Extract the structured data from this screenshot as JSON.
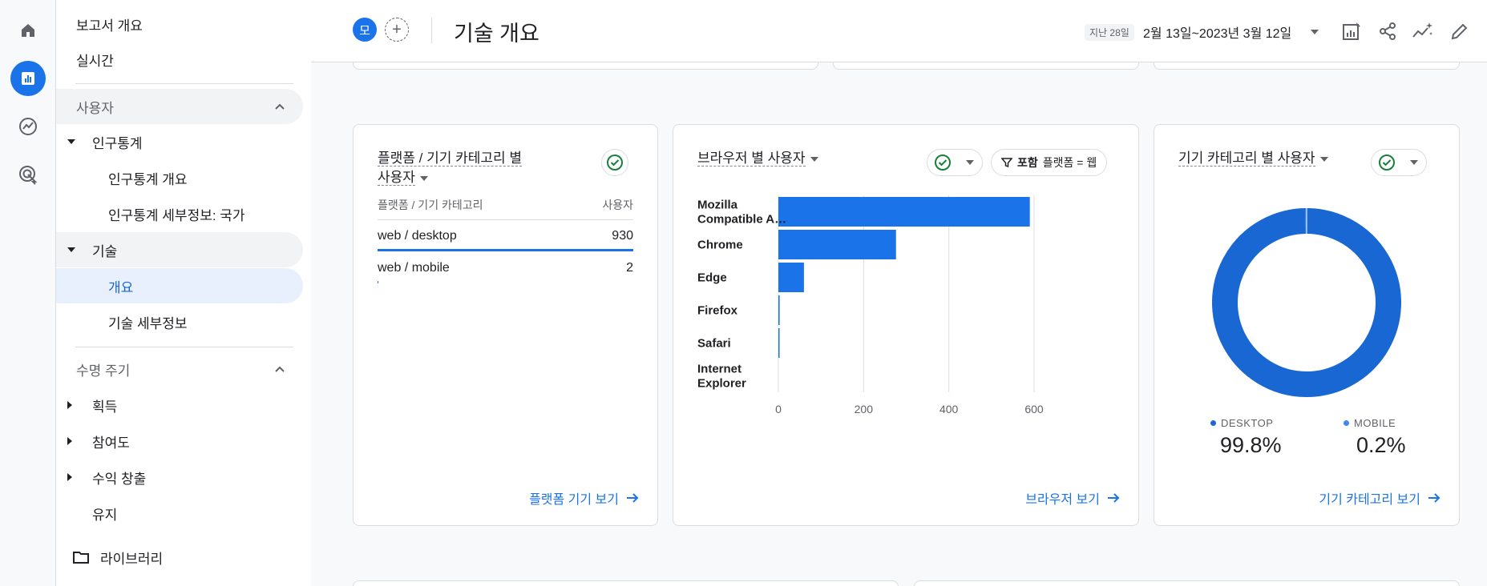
{
  "rail": {
    "icons": [
      "home-icon",
      "reports-icon",
      "explore-icon",
      "advertising-icon"
    ]
  },
  "sidebar": {
    "items": [
      {
        "label": "보고서 개요"
      },
      {
        "label": "실시간"
      },
      {
        "label": "사용자"
      },
      {
        "label": "인구통계"
      },
      {
        "label": "인구통계 개요"
      },
      {
        "label": "인구통계 세부정보: 국가"
      },
      {
        "label": "기술"
      },
      {
        "label": "개요"
      },
      {
        "label": "기술 세부정보"
      },
      {
        "label": "수명 주기"
      },
      {
        "label": "획득"
      },
      {
        "label": "참여도"
      },
      {
        "label": "수익 창출"
      },
      {
        "label": "유지"
      },
      {
        "label": "라이브러리"
      }
    ]
  },
  "header": {
    "avatar_letter": "모",
    "add_symbol": "+",
    "title": "기술 개요",
    "date_chip": "지난 28일",
    "date_range": "2월 13일~2023년 3월 12일"
  },
  "platform_card": {
    "title_line1": "플랫폼 / 기기 카테고리 별",
    "title_line2": "사용자",
    "col_dim": "플랫폼 / 기기 카테고리",
    "col_metric": "사용자",
    "rows": [
      {
        "label": "web / desktop",
        "value": "930",
        "share": 0.998
      },
      {
        "label": "web / mobile",
        "value": "2",
        "share": 0.002
      }
    ],
    "link": "플랫폼 기기 보기"
  },
  "browser_card": {
    "title": "브라우저 별 사용자",
    "filter_bold": "포함",
    "filter_text": "플랫폼 = 웹",
    "link": "브라우저 보기"
  },
  "device_card": {
    "title": "기기 카테고리 별 사용자",
    "legend": [
      {
        "name": "DESKTOP",
        "pct": "99.8%",
        "color": "#1967d2"
      },
      {
        "name": "MOBILE",
        "pct": "0.2%",
        "color": "#4285f4"
      }
    ],
    "link": "기기 카테고리 보기"
  },
  "colors": {
    "accent": "#1a73e8",
    "bar": "#1a73e8",
    "check": "#188038"
  },
  "chart_data": [
    {
      "type": "bar",
      "orientation": "horizontal",
      "title": "브라우저 별 사용자",
      "categories": [
        "Mozilla Compatible A…",
        "Chrome",
        "Edge",
        "Firefox",
        "Safari",
        "Internet Explorer"
      ],
      "category_lines": [
        [
          "Mozilla",
          "Compatible A…"
        ],
        [
          "Chrome"
        ],
        [
          "Edge"
        ],
        [
          "Firefox"
        ],
        [
          "Safari"
        ],
        [
          "Internet",
          "Explorer"
        ]
      ],
      "values": [
        590,
        276,
        60,
        3,
        1,
        0
      ],
      "xlim": [
        0,
        600
      ],
      "xticks": [
        0,
        200,
        400,
        600
      ],
      "grid": true
    },
    {
      "type": "pie",
      "style": "donut",
      "title": "기기 카테고리 별 사용자",
      "categories": [
        "DESKTOP",
        "MOBILE"
      ],
      "values": [
        99.8,
        0.2
      ]
    }
  ]
}
